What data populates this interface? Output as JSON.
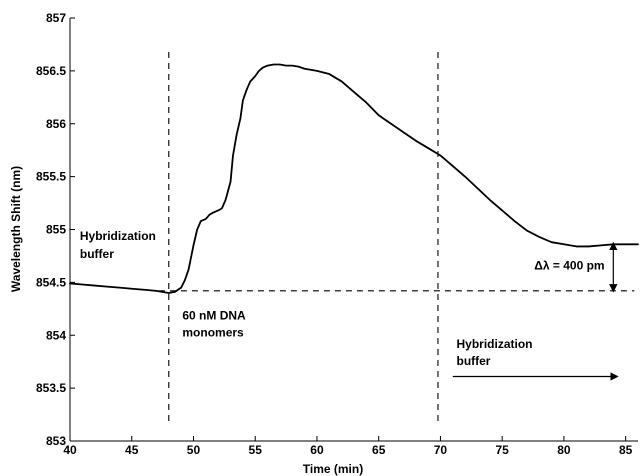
{
  "chart_data": {
    "type": "line",
    "xlabel": "Time (min)",
    "ylabel": "Wavelength Shift (nm)",
    "xlim": [
      40,
      86
    ],
    "ylim": [
      853,
      857
    ],
    "x_ticks": [
      40,
      45,
      50,
      55,
      60,
      65,
      70,
      75,
      80,
      85
    ],
    "y_ticks": [
      853,
      853.5,
      854,
      854.5,
      855,
      855.5,
      856,
      856.5,
      857
    ],
    "x_tick_labels": [
      "40",
      "45",
      "50",
      "55",
      "60",
      "65",
      "70",
      "75",
      "80",
      "85"
    ],
    "y_tick_labels": [
      "853",
      "853.5",
      "854",
      "854.5",
      "855",
      "855.5",
      "856",
      "856.5",
      "857"
    ],
    "grid": false,
    "series": [
      {
        "x": [
          40,
          41,
          42,
          43,
          44,
          45,
          46,
          47,
          48,
          48.5,
          49,
          49.3,
          49.6,
          50,
          50.3,
          50.6,
          51,
          51.3,
          51.6,
          52,
          52.3,
          52.6,
          53,
          53.2,
          53.5,
          53.8,
          54,
          54.3,
          54.6,
          55,
          55.3,
          55.6,
          56,
          56.5,
          57,
          57.5,
          58,
          58.5,
          59,
          60,
          61,
          62,
          63,
          64,
          65,
          66,
          67,
          68,
          69,
          70,
          71,
          72,
          73,
          74,
          75,
          76,
          77,
          78,
          79,
          80,
          81,
          82,
          83,
          84,
          85,
          86
        ],
        "y": [
          854.49,
          854.48,
          854.47,
          854.46,
          854.45,
          854.44,
          854.43,
          854.42,
          854.4,
          854.41,
          854.45,
          854.52,
          854.62,
          854.85,
          855.0,
          855.08,
          855.1,
          855.14,
          855.16,
          855.18,
          855.2,
          855.28,
          855.45,
          855.7,
          855.9,
          856.05,
          856.22,
          856.32,
          856.4,
          856.45,
          856.5,
          856.53,
          856.55,
          856.56,
          856.56,
          856.55,
          856.55,
          856.54,
          856.52,
          856.5,
          856.47,
          856.4,
          856.3,
          856.2,
          856.08,
          856.0,
          855.92,
          855.84,
          855.77,
          855.7,
          855.6,
          855.5,
          855.39,
          855.28,
          855.18,
          855.08,
          854.99,
          854.93,
          854.88,
          854.86,
          854.84,
          854.84,
          854.85,
          854.86,
          854.86,
          854.86
        ]
      }
    ],
    "reference_lines": {
      "vertical_x": [
        48,
        69.8
      ],
      "horizontal_y": 854.42
    },
    "annotations": [
      {
        "text": "Hybridization",
        "x": 40.8,
        "y": 854.9
      },
      {
        "text": "buffer",
        "x": 40.8,
        "y": 854.73
      },
      {
        "text": "60 nM DNA",
        "x": 49.1,
        "y": 854.15
      },
      {
        "text": "monomers",
        "x": 49.1,
        "y": 853.99
      },
      {
        "text": "Hybridization",
        "x": 71.3,
        "y": 853.88
      },
      {
        "text": "buffer",
        "x": 71.3,
        "y": 853.72
      },
      {
        "text": "Δλ = 400 pm",
        "x": 77.6,
        "y": 854.62
      }
    ],
    "arrows": [
      {
        "x1": 71.0,
        "y1": 853.61,
        "x2": 84.3,
        "y2": 853.61
      }
    ],
    "double_arrow": {
      "x": 84.0,
      "y1": 854.82,
      "y2": 854.42
    }
  }
}
